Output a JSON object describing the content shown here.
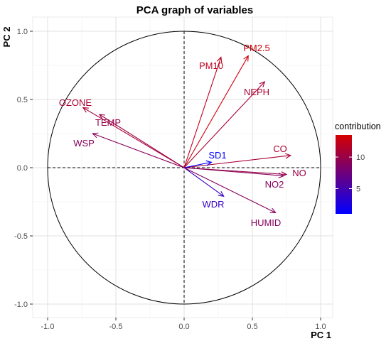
{
  "chart_data": {
    "type": "scatter",
    "title": "PCA graph of variables",
    "xlabel": "PC 1",
    "ylabel": "PC 2",
    "xlim": [
      -1.1,
      1.1
    ],
    "ylim": [
      -1.1,
      1.1
    ],
    "x_ticks": [
      -1.0,
      -0.5,
      0.0,
      0.5,
      1.0
    ],
    "y_ticks": [
      -1.0,
      -0.5,
      0.0,
      0.5,
      1.0
    ],
    "x_tick_labels": [
      "-1.0",
      "-0.5",
      "0.0",
      "0.5",
      "1.0"
    ],
    "y_tick_labels": [
      "-1.0",
      "-0.5",
      "0.0",
      "0.5",
      "1.0"
    ],
    "grid": true,
    "unit_circle": true,
    "legend": {
      "title": "contribution",
      "placement": "right",
      "min": 1,
      "max": 13.5,
      "ticks": [
        5,
        10
      ],
      "tick_labels": [
        "5",
        "10"
      ],
      "low_color": "#0000ff",
      "high_color": "#d40000"
    },
    "variables": [
      {
        "name": "PM2.5",
        "x": 0.47,
        "y": 0.82,
        "contribution": 13
      },
      {
        "name": "PM10",
        "x": 0.27,
        "y": 0.81,
        "contribution": 12
      },
      {
        "name": "NEPH",
        "x": 0.59,
        "y": 0.63,
        "contribution": 11
      },
      {
        "name": "OZONE",
        "x": -0.74,
        "y": 0.44,
        "contribution": 11
      },
      {
        "name": "TEMP",
        "x": -0.62,
        "y": 0.39,
        "contribution": 10
      },
      {
        "name": "WSP",
        "x": -0.67,
        "y": 0.25,
        "contribution": 9
      },
      {
        "name": "CO",
        "x": 0.78,
        "y": 0.09,
        "contribution": 11
      },
      {
        "name": "NO",
        "x": 0.75,
        "y": -0.05,
        "contribution": 10
      },
      {
        "name": "NO2",
        "x": 0.73,
        "y": -0.06,
        "contribution": 9
      },
      {
        "name": "SD1",
        "x": 0.2,
        "y": 0.04,
        "contribution": 1
      },
      {
        "name": "WDR",
        "x": 0.29,
        "y": -0.21,
        "contribution": 4
      },
      {
        "name": "HUMID",
        "x": 0.67,
        "y": -0.33,
        "contribution": 9
      }
    ]
  }
}
